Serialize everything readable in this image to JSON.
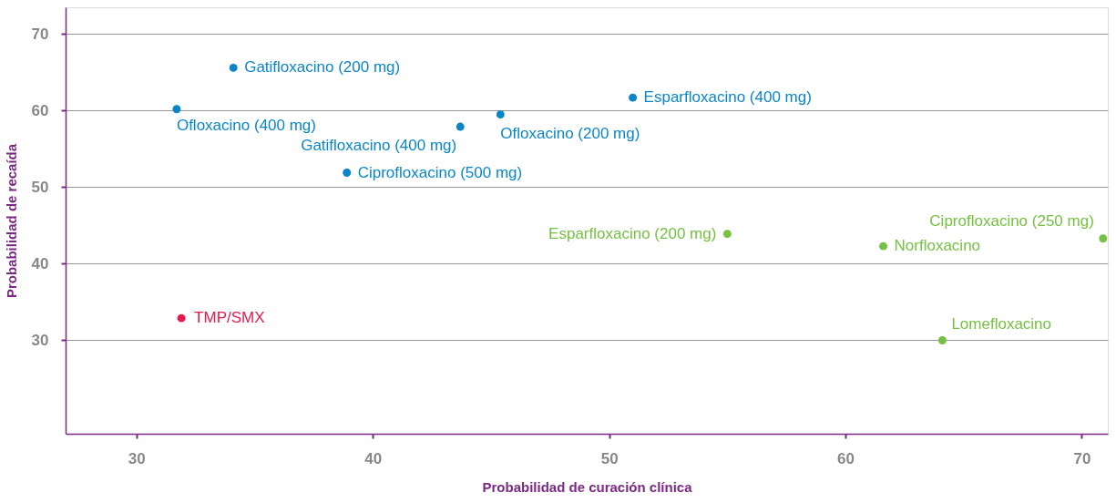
{
  "chart_data": {
    "type": "scatter",
    "xlabel": "Probabilidad de curación clínica",
    "ylabel": "Probabilidad de recaída",
    "xlim": [
      27.0,
      71.1
    ],
    "ylim": [
      17.8,
      73.5
    ],
    "xticks": [
      30,
      40,
      50,
      60,
      70
    ],
    "yticks": [
      30,
      40,
      50,
      60,
      70
    ],
    "grid": "y",
    "marker": "circle",
    "series": [
      {
        "color": "#0a86c8",
        "x": [
          34.1,
          31.7,
          43.7,
          45.4,
          51.0,
          38.9
        ],
        "values": [
          65.6,
          60.2,
          57.9,
          59.5,
          61.7,
          51.9
        ]
      },
      {
        "color": "#76c043",
        "x": [
          55.0,
          61.6,
          70.9,
          64.1
        ],
        "values": [
          43.9,
          42.3,
          43.3,
          30.0
        ]
      },
      {
        "color": "#e8194b",
        "x": [
          31.9
        ],
        "values": [
          32.9
        ]
      }
    ],
    "annotations": [
      {
        "text": "Gatifloxacino (200 mg)",
        "x": 34.1,
        "y": 65.6
      },
      {
        "text": "Ofloxacino (400 mg)",
        "x": 31.7,
        "y": 60.2
      },
      {
        "text": "Gatifloxacino (400 mg)",
        "x": 43.7,
        "y": 57.9
      },
      {
        "text": "Ofloxacino (200 mg)",
        "x": 45.4,
        "y": 59.5
      },
      {
        "text": "Esparfloxacino (400 mg)",
        "x": 51.0,
        "y": 61.7
      },
      {
        "text": "Ciprofloxacino (500 mg)",
        "x": 38.9,
        "y": 51.9
      },
      {
        "text": "Esparfloxacino (200 mg)",
        "x": 55.0,
        "y": 43.9
      },
      {
        "text": "Norfloxacino",
        "x": 61.6,
        "y": 42.3
      },
      {
        "text": "Ciprofloxacino (250 mg)",
        "x": 70.9,
        "y": 43.3
      },
      {
        "text": "Lomefloxacino",
        "x": 64.1,
        "y": 30.0
      },
      {
        "text": "TMP/SMX",
        "x": 31.9,
        "y": 32.9
      }
    ]
  }
}
